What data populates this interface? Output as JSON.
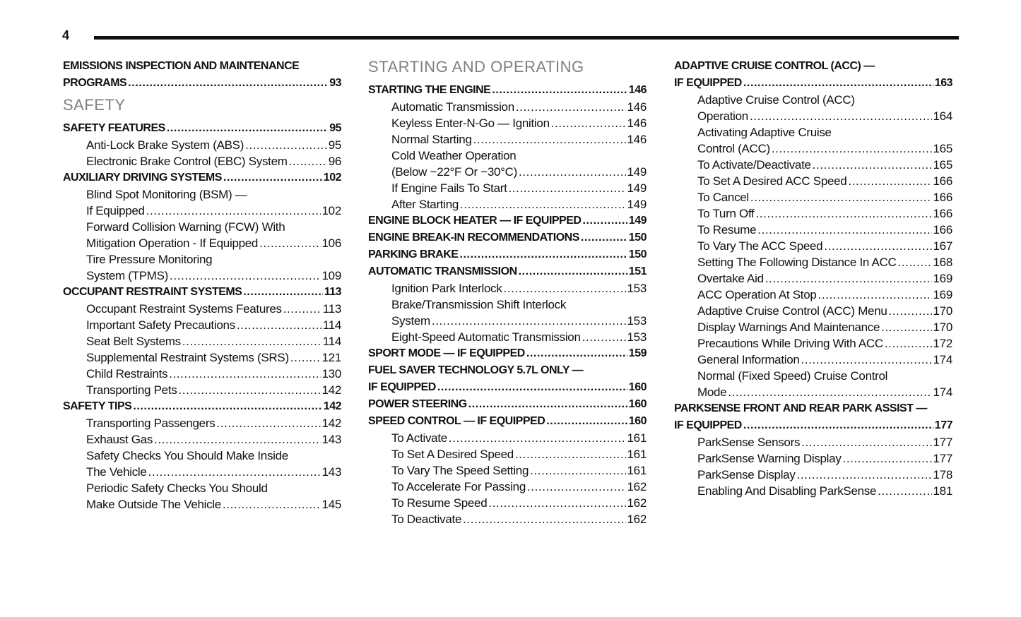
{
  "page_number": "4",
  "columns": [
    [
      {
        "type": "entry",
        "bold": true,
        "level": 1,
        "lines": [
          "EMISSIONS INSPECTION AND MAINTENANCE"
        ],
        "label": "PROGRAMS",
        "page": "93"
      },
      {
        "type": "section",
        "title": "SAFETY"
      },
      {
        "type": "entry",
        "bold": true,
        "level": 1,
        "lines": [],
        "label": "SAFETY FEATURES",
        "page": "95"
      },
      {
        "type": "entry",
        "level": 2,
        "lines": [],
        "label": "Anti-Lock Brake System (ABS)",
        "page": "95"
      },
      {
        "type": "entry",
        "level": 2,
        "lines": [],
        "label": "Electronic Brake Control (EBC) System",
        "page": "96"
      },
      {
        "type": "entry",
        "bold": true,
        "level": 1,
        "lines": [],
        "label": "AUXILIARY DRIVING SYSTEMS",
        "page": "102"
      },
      {
        "type": "entry",
        "level": 2,
        "lines": [
          "Blind Spot Monitoring (BSM) —"
        ],
        "label": "If Equipped",
        "page": "102"
      },
      {
        "type": "entry",
        "level": 2,
        "lines": [
          "Forward Collision Warning (FCW) With"
        ],
        "label": "Mitigation Operation - If Equipped",
        "page": "106"
      },
      {
        "type": "entry",
        "level": 2,
        "lines": [
          "Tire Pressure Monitoring"
        ],
        "label": "System (TPMS)",
        "page": "109"
      },
      {
        "type": "entry",
        "bold": true,
        "level": 1,
        "lines": [],
        "label": "OCCUPANT RESTRAINT SYSTEMS",
        "page": "113"
      },
      {
        "type": "entry",
        "level": 2,
        "lines": [],
        "label": "Occupant Restraint Systems Features",
        "page": "113"
      },
      {
        "type": "entry",
        "level": 2,
        "lines": [],
        "label": "Important Safety Precautions",
        "page": "114"
      },
      {
        "type": "entry",
        "level": 2,
        "lines": [],
        "label": "Seat Belt Systems",
        "page": "114"
      },
      {
        "type": "entry",
        "level": 2,
        "lines": [],
        "label": "Supplemental Restraint Systems (SRS)",
        "page": "121"
      },
      {
        "type": "entry",
        "level": 2,
        "lines": [],
        "label": "Child Restraints",
        "page": "130"
      },
      {
        "type": "entry",
        "level": 2,
        "lines": [],
        "label": "Transporting Pets",
        "page": "142"
      },
      {
        "type": "entry",
        "bold": true,
        "level": 1,
        "lines": [],
        "label": "SAFETY TIPS",
        "page": "142"
      },
      {
        "type": "entry",
        "level": 2,
        "lines": [],
        "label": "Transporting Passengers",
        "page": "142"
      },
      {
        "type": "entry",
        "level": 2,
        "lines": [],
        "label": "Exhaust Gas",
        "page": "143"
      },
      {
        "type": "entry",
        "level": 2,
        "lines": [
          "Safety Checks You Should Make Inside"
        ],
        "label": "The Vehicle",
        "page": "143"
      },
      {
        "type": "entry",
        "level": 2,
        "lines": [
          "Periodic Safety Checks You Should"
        ],
        "label": "Make Outside The Vehicle",
        "page": "145"
      }
    ],
    [
      {
        "type": "section",
        "title": "STARTING AND OPERATING"
      },
      {
        "type": "entry",
        "bold": true,
        "level": 1,
        "lines": [],
        "label": "STARTING THE ENGINE",
        "page": "146"
      },
      {
        "type": "entry",
        "level": 2,
        "lines": [],
        "label": "Automatic Transmission",
        "page": "146"
      },
      {
        "type": "entry",
        "level": 2,
        "lines": [],
        "label": "Keyless Enter-N-Go — Ignition",
        "page": "146"
      },
      {
        "type": "entry",
        "level": 2,
        "lines": [],
        "label": "Normal Starting",
        "page": "146"
      },
      {
        "type": "entry",
        "level": 2,
        "lines": [
          "Cold Weather Operation"
        ],
        "label": "(Below −22°F Or −30°C)",
        "page": "149"
      },
      {
        "type": "entry",
        "level": 2,
        "lines": [],
        "label": "If Engine Fails To Start",
        "page": "149"
      },
      {
        "type": "entry",
        "level": 2,
        "lines": [],
        "label": "After Starting",
        "page": "149"
      },
      {
        "type": "entry",
        "bold": true,
        "level": 1,
        "lines": [],
        "label": "ENGINE BLOCK HEATER — IF EQUIPPED",
        "page": "149"
      },
      {
        "type": "entry",
        "bold": true,
        "level": 1,
        "lines": [],
        "label": "ENGINE BREAK-IN RECOMMENDATIONS",
        "page": "150"
      },
      {
        "type": "entry",
        "bold": true,
        "level": 1,
        "lines": [],
        "label": "PARKING BRAKE",
        "page": "150"
      },
      {
        "type": "entry",
        "bold": true,
        "level": 1,
        "lines": [],
        "label": "AUTOMATIC TRANSMISSION",
        "page": "151"
      },
      {
        "type": "entry",
        "level": 2,
        "lines": [],
        "label": "Ignition Park Interlock",
        "page": "153"
      },
      {
        "type": "entry",
        "level": 2,
        "lines": [
          "Brake/Transmission Shift Interlock"
        ],
        "label": "System",
        "page": "153"
      },
      {
        "type": "entry",
        "level": 2,
        "lines": [],
        "label": "Eight-Speed Automatic Transmission",
        "page": "153"
      },
      {
        "type": "entry",
        "bold": true,
        "level": 1,
        "lines": [],
        "label": "SPORT MODE — IF EQUIPPED",
        "page": "159"
      },
      {
        "type": "entry",
        "bold": true,
        "level": 1,
        "lines": [
          "FUEL SAVER TECHNOLOGY 5.7L ONLY —"
        ],
        "label": "IF EQUIPPED",
        "page": "160"
      },
      {
        "type": "entry",
        "bold": true,
        "level": 1,
        "lines": [],
        "label": "POWER STEERING",
        "page": "160"
      },
      {
        "type": "entry",
        "bold": true,
        "level": 1,
        "lines": [],
        "label": "SPEED CONTROL — IF EQUIPPED",
        "page": "160"
      },
      {
        "type": "entry",
        "level": 2,
        "lines": [],
        "label": "To Activate",
        "page": "161"
      },
      {
        "type": "entry",
        "level": 2,
        "lines": [],
        "label": "To Set A Desired Speed",
        "page": "161"
      },
      {
        "type": "entry",
        "level": 2,
        "lines": [],
        "label": "To Vary The Speed Setting",
        "page": "161"
      },
      {
        "type": "entry",
        "level": 2,
        "lines": [],
        "label": "To Accelerate For Passing",
        "page": "162"
      },
      {
        "type": "entry",
        "level": 2,
        "lines": [],
        "label": "To Resume Speed",
        "page": "162"
      },
      {
        "type": "entry",
        "level": 2,
        "lines": [],
        "label": "To Deactivate",
        "page": "162"
      }
    ],
    [
      {
        "type": "entry",
        "bold": true,
        "level": 1,
        "lines": [
          "ADAPTIVE CRUISE CONTROL (ACC) —"
        ],
        "label": "IF EQUIPPED",
        "page": "163"
      },
      {
        "type": "entry",
        "level": 2,
        "lines": [
          "Adaptive Cruise Control (ACC)"
        ],
        "label": "Operation",
        "page": "164"
      },
      {
        "type": "entry",
        "level": 2,
        "lines": [
          "Activating Adaptive Cruise"
        ],
        "label": "Control (ACC)",
        "page": "165"
      },
      {
        "type": "entry",
        "level": 2,
        "lines": [],
        "label": "To Activate/Deactivate",
        "page": "165"
      },
      {
        "type": "entry",
        "level": 2,
        "lines": [],
        "label": "To Set A Desired ACC Speed",
        "page": "166"
      },
      {
        "type": "entry",
        "level": 2,
        "lines": [],
        "label": "To Cancel",
        "page": "166"
      },
      {
        "type": "entry",
        "level": 2,
        "lines": [],
        "label": "To Turn Off",
        "page": "166"
      },
      {
        "type": "entry",
        "level": 2,
        "lines": [],
        "label": "To Resume",
        "page": "166"
      },
      {
        "type": "entry",
        "level": 2,
        "lines": [],
        "label": "To Vary The ACC Speed",
        "page": "167"
      },
      {
        "type": "entry",
        "level": 2,
        "lines": [],
        "label": "Setting The Following Distance In ACC",
        "page": "168"
      },
      {
        "type": "entry",
        "level": 2,
        "lines": [],
        "label": "Overtake Aid",
        "page": "169"
      },
      {
        "type": "entry",
        "level": 2,
        "lines": [],
        "label": "ACC Operation At Stop",
        "page": "169"
      },
      {
        "type": "entry",
        "level": 2,
        "lines": [],
        "label": "Adaptive Cruise Control (ACC) Menu",
        "page": "170"
      },
      {
        "type": "entry",
        "level": 2,
        "lines": [],
        "label": "Display Warnings And Maintenance",
        "page": "170"
      },
      {
        "type": "entry",
        "level": 2,
        "lines": [],
        "label": "Precautions While Driving With ACC",
        "page": "172"
      },
      {
        "type": "entry",
        "level": 2,
        "lines": [],
        "label": "General Information",
        "page": "174"
      },
      {
        "type": "entry",
        "level": 2,
        "lines": [
          "Normal (Fixed Speed) Cruise Control"
        ],
        "label": "Mode",
        "page": "174"
      },
      {
        "type": "entry",
        "bold": true,
        "level": 1,
        "lines": [
          "PARKSENSE FRONT AND REAR PARK ASSIST —"
        ],
        "label": "IF EQUIPPED",
        "page": "177"
      },
      {
        "type": "entry",
        "level": 2,
        "lines": [],
        "label": "ParkSense Sensors",
        "page": "177"
      },
      {
        "type": "entry",
        "level": 2,
        "lines": [],
        "label": "ParkSense Warning Display",
        "page": "177"
      },
      {
        "type": "entry",
        "level": 2,
        "lines": [],
        "label": "ParkSense Display",
        "page": "178"
      },
      {
        "type": "entry",
        "level": 2,
        "lines": [],
        "label": "Enabling And Disabling ParkSense",
        "page": "181"
      }
    ]
  ]
}
